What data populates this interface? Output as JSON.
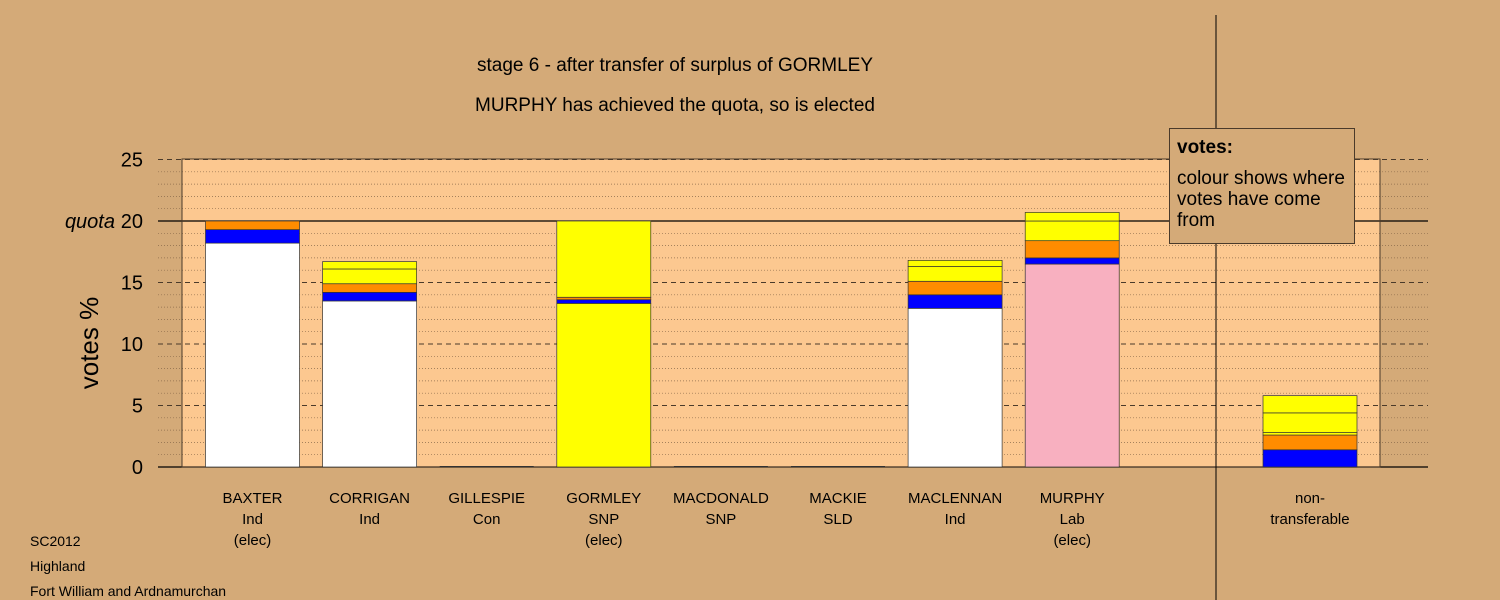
{
  "title": "stage 6 - after transfer of surplus of GORMLEY",
  "subtitle": "MURPHY has achieved the quota, so is elected",
  "legend": {
    "heading": "votes:",
    "text": "colour shows where votes have come from"
  },
  "source": {
    "election": "SC2012",
    "council": "Highland",
    "ward": "Fort William and Ardnamurchan"
  },
  "colors": {
    "background": "#d4aa78",
    "plot": "#fcc890",
    "Ind": "#ffffff",
    "SNP": "#ffff00",
    "Lab": "#f8b0c0",
    "transfer_blue": "#0000ff",
    "transfer_orange": "#ff8c00",
    "transfer_yellow": "#ffff00"
  },
  "chart_data": {
    "type": "bar",
    "stacked": true,
    "ylabel": "votes %",
    "ylim": [
      0,
      25
    ],
    "yticks": [
      0,
      5,
      10,
      15,
      20,
      25
    ],
    "quota": {
      "label": "quota",
      "value": 20
    },
    "grid": "dashed lines every 5, dotted lines every 1",
    "categories": [
      {
        "name": "BAXTER",
        "party": "Ind",
        "note": "(elec)",
        "segments": [
          {
            "value": 18.2,
            "color": "#ffffff"
          },
          {
            "value": 1.1,
            "color": "#0000ff"
          },
          {
            "value": 0.7,
            "color": "#ff8c00"
          }
        ]
      },
      {
        "name": "CORRIGAN",
        "party": "Ind",
        "note": "",
        "segments": [
          {
            "value": 13.5,
            "color": "#ffffff"
          },
          {
            "value": 0.7,
            "color": "#0000ff"
          },
          {
            "value": 0.7,
            "color": "#ff8c00"
          },
          {
            "value": 1.2,
            "color": "#ffff00"
          },
          {
            "value": 0.6,
            "color": "#ffff00"
          }
        ]
      },
      {
        "name": "GILLESPIE",
        "party": "Con",
        "note": "",
        "segments": []
      },
      {
        "name": "GORMLEY",
        "party": "SNP",
        "note": "(elec)",
        "segments": [
          {
            "value": 13.3,
            "color": "#ffff00"
          },
          {
            "value": 0.3,
            "color": "#0000ff"
          },
          {
            "value": 0.2,
            "color": "#ff8c00"
          },
          {
            "value": 6.2,
            "color": "#ffff00"
          }
        ]
      },
      {
        "name": "MACDONALD",
        "party": "SNP",
        "note": "",
        "segments": []
      },
      {
        "name": "MACKIE",
        "party": "SLD",
        "note": "",
        "segments": []
      },
      {
        "name": "MACLENNAN",
        "party": "Ind",
        "note": "",
        "segments": [
          {
            "value": 12.9,
            "color": "#ffffff"
          },
          {
            "value": 1.1,
            "color": "#0000ff"
          },
          {
            "value": 1.1,
            "color": "#ff8c00"
          },
          {
            "value": 1.2,
            "color": "#ffff00"
          },
          {
            "value": 0.5,
            "color": "#ffff00"
          }
        ]
      },
      {
        "name": "MURPHY",
        "party": "Lab",
        "note": "(elec)",
        "segments": [
          {
            "value": 16.5,
            "color": "#f8b0c0"
          },
          {
            "value": 0.5,
            "color": "#0000ff"
          },
          {
            "value": 1.4,
            "color": "#ff8c00"
          },
          {
            "value": 1.6,
            "color": "#ffff00"
          },
          {
            "value": 0.7,
            "color": "#ffff00"
          }
        ]
      }
    ],
    "nontransferable": {
      "label1": "non-",
      "label2": "transferable",
      "segments": [
        {
          "value": 1.4,
          "color": "#0000ff"
        },
        {
          "value": 1.2,
          "color": "#ff8c00"
        },
        {
          "value": 0.2,
          "color": "#ffff00"
        },
        {
          "value": 1.6,
          "color": "#ffff00"
        },
        {
          "value": 1.4,
          "color": "#ffff00"
        }
      ]
    }
  }
}
